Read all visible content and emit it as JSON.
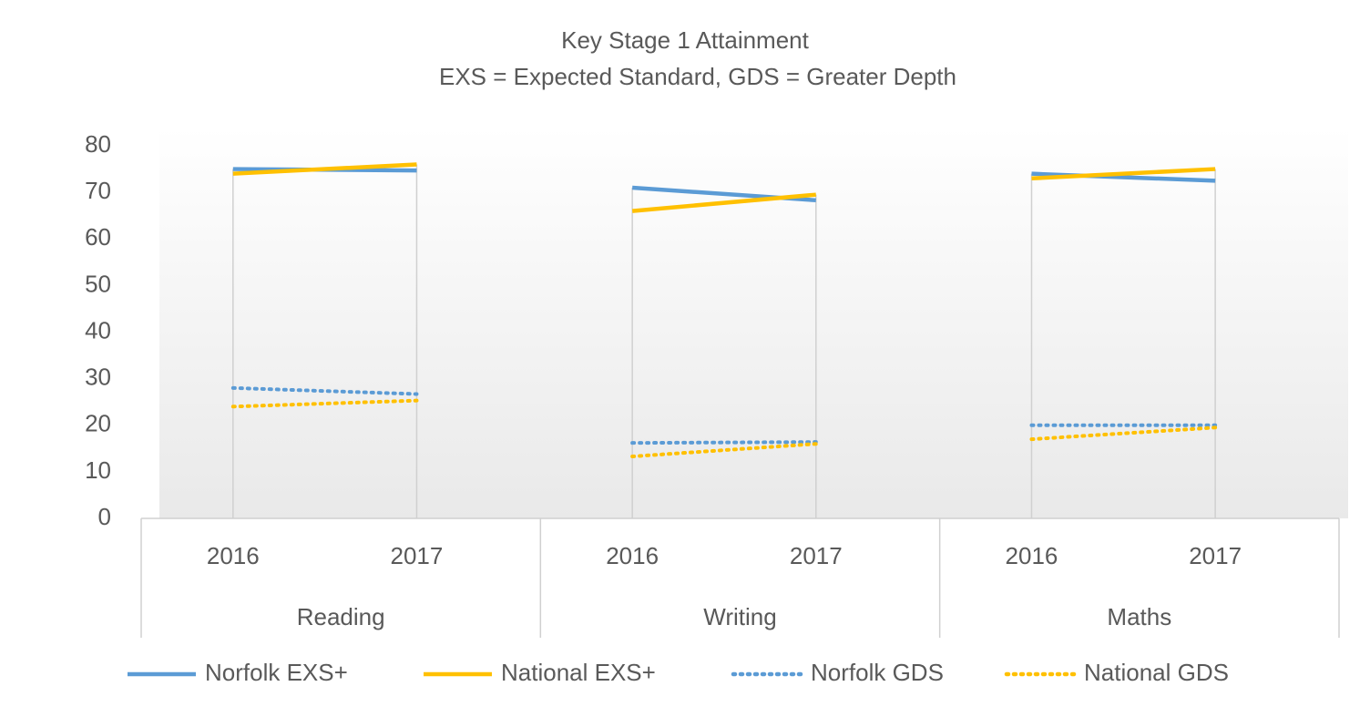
{
  "chart_data": {
    "type": "line",
    "title": "Key Stage 1 Attainment",
    "subtitle": "EXS = Expected Standard, GDS = Greater Depth",
    "groups": [
      "Reading",
      "Writing",
      "Maths"
    ],
    "categories": [
      "2016",
      "2017",
      "2016",
      "2017",
      "2016",
      "2017"
    ],
    "series": [
      {
        "name": "Norfolk EXS+",
        "color": "#5b9bd5",
        "dash": "solid",
        "values": [
          75,
          74.7,
          71,
          68.3,
          74,
          72.5
        ]
      },
      {
        "name": "National EXS+",
        "color": "#ffc000",
        "dash": "solid",
        "values": [
          74,
          76,
          66,
          69.5,
          73,
          75
        ]
      },
      {
        "name": "Norfolk GDS",
        "color": "#5b9bd5",
        "dash": "dotted",
        "values": [
          28,
          26.7,
          16.2,
          16.4,
          20,
          20
        ]
      },
      {
        "name": "National GDS",
        "color": "#ffc000",
        "dash": "dotted",
        "values": [
          24,
          25.3,
          13.3,
          16,
          17,
          19.5
        ]
      }
    ],
    "ylim": [
      0,
      80
    ],
    "yticks": [
      0,
      10,
      20,
      30,
      40,
      50,
      60,
      70,
      80
    ],
    "legend": "bottom"
  }
}
